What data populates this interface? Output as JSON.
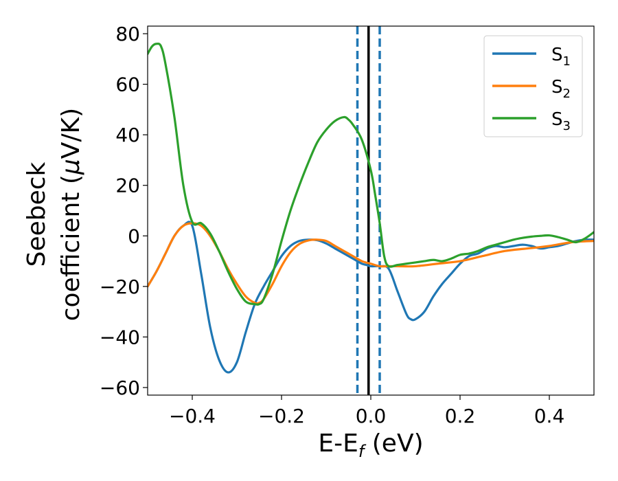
{
  "chart_data": {
    "type": "line",
    "xlabel": "E-E",
    "xlabel_sub": "f",
    "xlabel_unit": " (eV)",
    "ylabel_line1": "Seebeck",
    "ylabel_line2": "coefficient  (",
    "ylabel_mu": "μ",
    "ylabel_unit": "V/K)",
    "xlim": [
      -0.5,
      0.5
    ],
    "ylim": [
      -63,
      83
    ],
    "xticks": [
      -0.4,
      -0.2,
      0.0,
      0.2,
      0.4
    ],
    "xtick_labels": [
      "−0.4",
      "−0.2",
      "0.0",
      "0.2",
      "0.4"
    ],
    "yticks": [
      -60,
      -40,
      -20,
      0,
      20,
      40,
      60,
      80
    ],
    "ytick_labels": [
      "−60",
      "−40",
      "−20",
      "0",
      "20",
      "40",
      "60",
      "80"
    ],
    "legend_position": "top-right",
    "vlines": [
      {
        "x": -0.03,
        "style": "dashed",
        "color": "#1f77b4"
      },
      {
        "x": 0.02,
        "style": "dashed",
        "color": "#1f77b4"
      },
      {
        "x": -0.005,
        "style": "solid",
        "color": "#000000"
      }
    ],
    "series": [
      {
        "name": "S",
        "sub": "1",
        "color": "#1f77b4",
        "x": [
          -0.5,
          -0.48,
          -0.46,
          -0.44,
          -0.42,
          -0.4,
          -0.38,
          -0.36,
          -0.34,
          -0.32,
          -0.3,
          -0.28,
          -0.26,
          -0.24,
          -0.22,
          -0.2,
          -0.18,
          -0.16,
          -0.14,
          -0.12,
          -0.1,
          -0.08,
          -0.06,
          -0.04,
          -0.03,
          -0.02,
          -0.01,
          0.0,
          0.02,
          0.04,
          0.06,
          0.08,
          0.09,
          0.1,
          0.12,
          0.14,
          0.16,
          0.18,
          0.2,
          0.22,
          0.24,
          0.26,
          0.28,
          0.3,
          0.32,
          0.34,
          0.36,
          0.38,
          0.4,
          0.42,
          0.44,
          0.46,
          0.48,
          0.5
        ],
        "y": [
          -20,
          -14,
          -7,
          0,
          4,
          4,
          -15,
          -36,
          -49,
          -54,
          -50,
          -38,
          -27,
          -20,
          -14,
          -8,
          -4,
          -2,
          -1.5,
          -1.7,
          -3,
          -5,
          -7,
          -9,
          -10,
          -11,
          -11.5,
          -12,
          -12,
          -13,
          -22,
          -31,
          -33,
          -33,
          -30,
          -24,
          -19,
          -15,
          -11,
          -8,
          -7,
          -5,
          -4,
          -4.5,
          -4,
          -3.5,
          -4,
          -5,
          -4.5,
          -4,
          -3,
          -2,
          -1.5,
          -1.5
        ]
      },
      {
        "name": "S",
        "sub": "2",
        "color": "#ff7f0e",
        "x": [
          -0.5,
          -0.48,
          -0.46,
          -0.44,
          -0.42,
          -0.4,
          -0.38,
          -0.36,
          -0.34,
          -0.32,
          -0.3,
          -0.28,
          -0.26,
          -0.25,
          -0.24,
          -0.22,
          -0.2,
          -0.18,
          -0.16,
          -0.14,
          -0.12,
          -0.1,
          -0.08,
          -0.06,
          -0.04,
          -0.02,
          0.0,
          0.02,
          0.04,
          0.06,
          0.1,
          0.15,
          0.2,
          0.25,
          0.3,
          0.35,
          0.4,
          0.45,
          0.5
        ],
        "y": [
          -20,
          -14,
          -7,
          0,
          4,
          5,
          4,
          0,
          -6,
          -13,
          -19,
          -24,
          -26.5,
          -26.5,
          -25,
          -19,
          -12,
          -6.5,
          -3.2,
          -1.8,
          -1.5,
          -2,
          -4,
          -6,
          -8,
          -10,
          -11,
          -12,
          -12,
          -12,
          -12,
          -11,
          -10,
          -8,
          -6,
          -5,
          -4,
          -2.5,
          -2
        ]
      },
      {
        "name": "S",
        "sub": "3",
        "color": "#2ca02c",
        "x": [
          -0.5,
          -0.49,
          -0.48,
          -0.47,
          -0.46,
          -0.44,
          -0.42,
          -0.4,
          -0.38,
          -0.36,
          -0.34,
          -0.32,
          -0.3,
          -0.28,
          -0.26,
          -0.25,
          -0.24,
          -0.22,
          -0.2,
          -0.18,
          -0.16,
          -0.14,
          -0.12,
          -0.1,
          -0.08,
          -0.06,
          -0.05,
          -0.04,
          -0.02,
          0.0,
          0.01,
          0.02,
          0.03,
          0.04,
          0.06,
          0.08,
          0.1,
          0.12,
          0.14,
          0.16,
          0.18,
          0.2,
          0.22,
          0.24,
          0.26,
          0.28,
          0.3,
          0.32,
          0.34,
          0.36,
          0.38,
          0.4,
          0.42,
          0.44,
          0.46,
          0.48,
          0.5
        ],
        "y": [
          72,
          75,
          76,
          75,
          68,
          47,
          20,
          5.5,
          5,
          1,
          -6,
          -14,
          -21,
          -26,
          -27,
          -27,
          -25,
          -15,
          -2,
          10,
          20,
          29,
          37,
          42,
          45.5,
          47,
          46,
          44,
          38,
          26,
          16,
          5,
          -8,
          -12,
          -11.5,
          -11,
          -10.5,
          -10,
          -9.5,
          -10,
          -9,
          -7.5,
          -7,
          -6,
          -4.5,
          -3.5,
          -2.5,
          -1.5,
          -0.8,
          -0.3,
          0,
          0.2,
          -0.5,
          -1.5,
          -2.5,
          -1,
          1.5
        ]
      }
    ]
  }
}
